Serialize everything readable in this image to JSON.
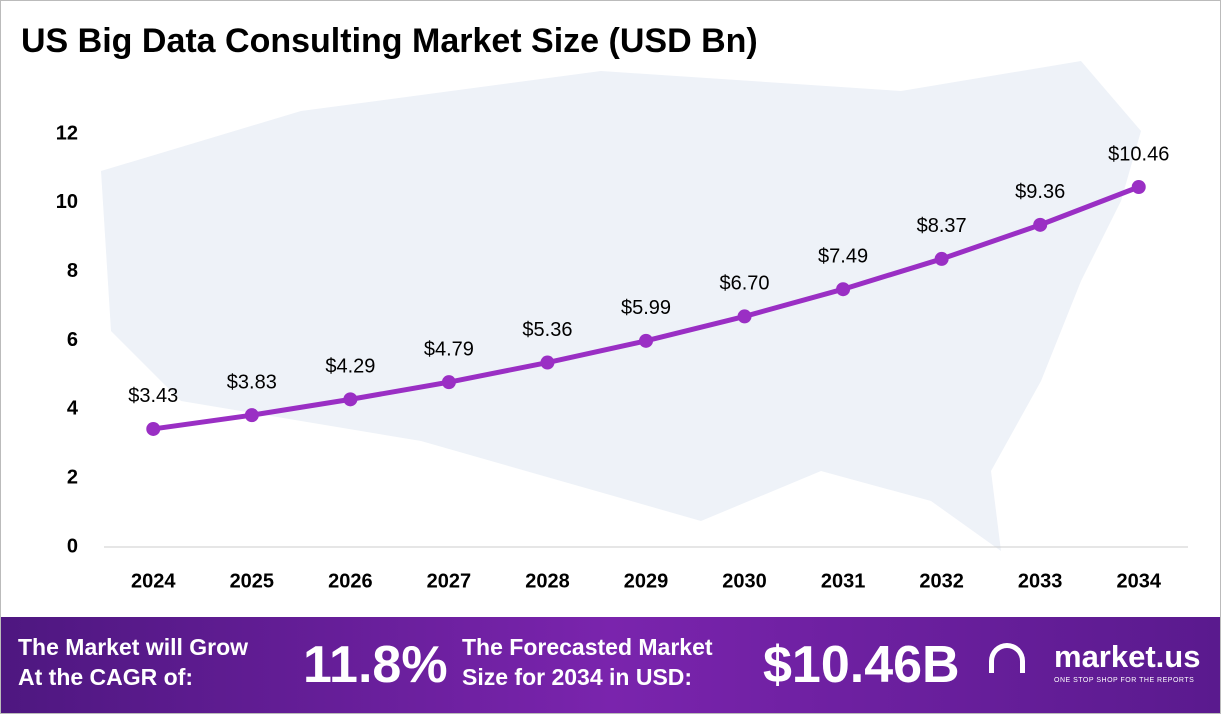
{
  "chart_data": {
    "type": "line",
    "title": "US Big Data Consulting Market Size (USD Bn)",
    "categories": [
      "2024",
      "2025",
      "2026",
      "2027",
      "2028",
      "2029",
      "2030",
      "2031",
      "2032",
      "2033",
      "2034"
    ],
    "values": [
      3.43,
      3.83,
      4.29,
      4.79,
      5.36,
      5.99,
      6.7,
      7.49,
      8.37,
      9.36,
      10.46
    ],
    "value_labels": [
      "$3.43",
      "$3.83",
      "$4.29",
      "$4.79",
      "$5.36",
      "$5.99",
      "$6.70",
      "$7.49",
      "$8.37",
      "$9.36",
      "$10.46"
    ],
    "color": "#9a2fc4",
    "ylim": [
      0,
      12
    ],
    "yticks": [
      0,
      2,
      4,
      6,
      8,
      10,
      12
    ],
    "grid": false
  },
  "footer": {
    "cagr_label": [
      "The Market will Grow",
      "At the CAGR of:"
    ],
    "cagr_value": "11.8%",
    "forecast_label": [
      "The Forecasted Market",
      "Size for 2034 in USD:"
    ],
    "forecast_value": "$10.46B",
    "brand": "market.us",
    "tagline": "ONE STOP SHOP FOR THE REPORTS"
  }
}
